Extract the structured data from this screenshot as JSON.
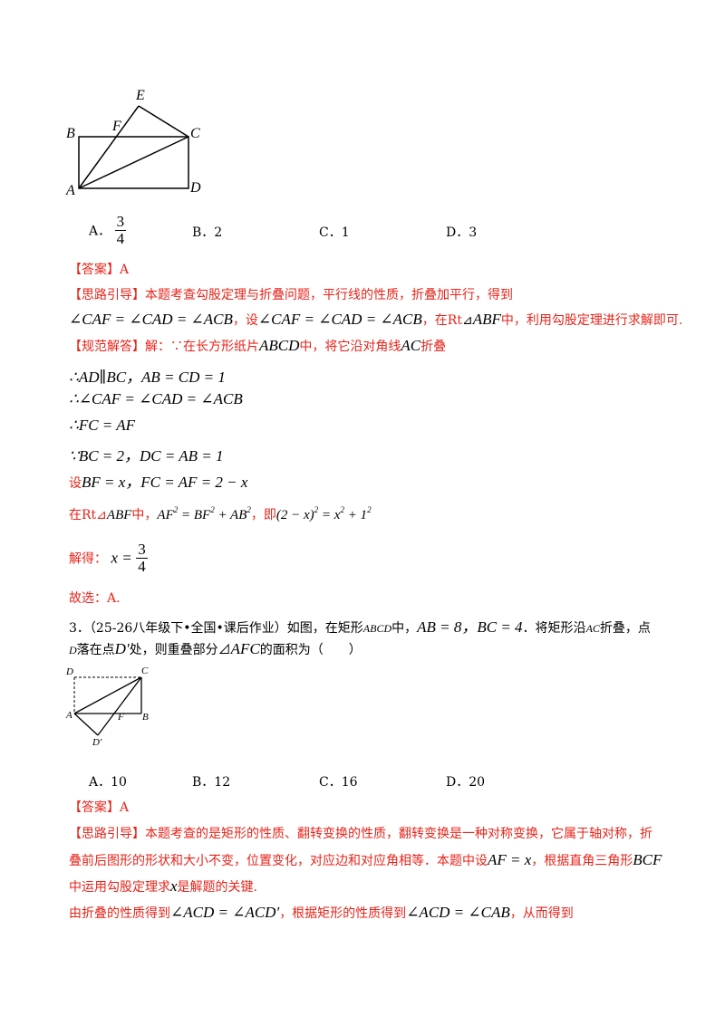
{
  "fig1": {
    "labels": {
      "E": "E",
      "F": "F",
      "B": "B",
      "C": "C",
      "A": "A",
      "D": "D"
    }
  },
  "q2": {
    "options": {
      "a_prefix": "A．",
      "a_num": "3",
      "a_den": "4",
      "b": "B．2",
      "c": "C．1",
      "d": "D．3"
    },
    "answer_label": "【答案】",
    "answer_value": "A",
    "hint_label": "【思路引导】",
    "hint_text": "本题考查勾股定理与折叠问题，平行线的性质，折叠加平行，得到",
    "hint_math": "∠CAF = ∠CAD = ∠ACB",
    "hint_mid": "，设",
    "hint_math2": "∠CAF = ∠CAD = ∠ACB",
    "hint_in": "，在Rt",
    "hint_tri": "⊿",
    "hint_abf": "ABF",
    "hint_end": "中，利用勾股定理进行求解即可.",
    "solution_label": "【规范解答】",
    "solution_intro": "解：∵在长方形纸片",
    "solution_abcd": "ABCD",
    "solution_mid": "中，将它沿对角线",
    "solution_ac": "AC",
    "solution_fold": "折叠",
    "step1": "∴AD∥BC，AB = CD = 1",
    "step2": "∴∠CAF = ∠CAD = ∠ACB",
    "step3": "∴FC = AF",
    "step4": "∵BC = 2，DC = AB = 1",
    "step5_pre": "设",
    "step5": "BF = x，FC = AF = 2 − x",
    "step6_pre": "在Rt⊿",
    "step6_abf": "ABF",
    "step6_mid": "中，",
    "step6_eq": "AF² = BF² + AB²",
    "step6_ji": "，即",
    "step6_eq2": "(2 − x)² = x² + 1²",
    "solve_label": "解得：",
    "solve_x": "x =",
    "solve_num": "3",
    "solve_den": "4",
    "choose": "故选：A."
  },
  "q3": {
    "line1": "3．（25-26八年级下•全国•课后作业）如图，在矩形",
    "abcd": "ABCD",
    "line1_zhong": "中，",
    "ab8": "AB = 8，BC = 4",
    "line1_end": "．将矩形沿",
    "ac": "AC",
    "line1_fold": "折叠，点",
    "line2_d": "D",
    "line2_pre": "落在点",
    "line2_dp": "D′",
    "line2_mid": "处，则重叠部分⊿",
    "line2_afc": "AFC",
    "line2_end": "的面积为（　　）",
    "fig_labels": {
      "D": "D",
      "C": "C",
      "A": "A",
      "F": "F",
      "B": "B",
      "Dp": "D'"
    },
    "options": {
      "a": "A．10",
      "b": "B．12",
      "c": "C．16",
      "d": "D．20"
    },
    "answer_label": "【答案】",
    "answer_value": "A",
    "hint_label": "【思路引导】",
    "hint_l1": "本题考查的是矩形的性质、翻转变换的性质，翻转变换是一种对称变换，它属于轴对称，折",
    "hint_l2a": "叠前后图形的形状和大小不变，位置变化，对应边和对应角相等．本题中设",
    "hint_afx": "AF = x",
    "hint_l2b": "，根据直角三角形",
    "hint_bcf": "BCF",
    "hint_l3a": "中运用勾股定理求",
    "hint_x": "x",
    "hint_l3b": "是解题的关键.",
    "line_last_a": "由折叠的性质得到",
    "line_last_m1": "∠ACD = ∠ACD′",
    "line_last_b": "，根据矩形的性质得到",
    "line_last_m2": "∠ACD = ∠CAB",
    "line_last_c": "，从而得到"
  }
}
